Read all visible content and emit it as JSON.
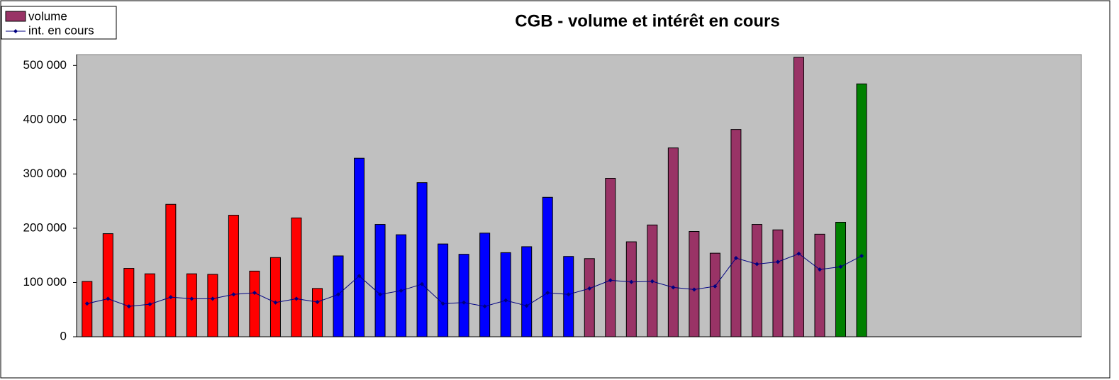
{
  "chart_data": {
    "type": "bar_line",
    "title": "CGB - volume et intérêt en cours",
    "categories": [
      null,
      null,
      null,
      null,
      null,
      null,
      null,
      null,
      null,
      null,
      null,
      null,
      null,
      null,
      null,
      null,
      null,
      null,
      null,
      null,
      null,
      null,
      null,
      null,
      null,
      null,
      null,
      null,
      null,
      null,
      null,
      null,
      null,
      null,
      null,
      null,
      null,
      null,
      null,
      null,
      null,
      null,
      null,
      null,
      null,
      null,
      null,
      null
    ],
    "series": [
      {
        "name": "volume",
        "color": "#993366",
        "values": [
          102000,
          190000,
          126000,
          116000,
          244000,
          116000,
          115000,
          224000,
          121000,
          146000,
          219000,
          89000,
          149000,
          329000,
          207000,
          188000,
          284000,
          171000,
          152000,
          191000,
          155000,
          166000,
          257000,
          148000,
          144000,
          292000,
          175000,
          206000,
          348000,
          194000,
          154000,
          382000,
          207000,
          197000,
          515000,
          189000,
          211000,
          466000,
          null,
          null,
          null,
          null,
          null,
          null,
          null,
          null,
          null,
          null
        ],
        "colors": [
          "#ff0000",
          "#ff0000",
          "#ff0000",
          "#ff0000",
          "#ff0000",
          "#ff0000",
          "#ff0000",
          "#ff0000",
          "#ff0000",
          "#ff0000",
          "#ff0000",
          "#ff0000",
          "#0000ff",
          "#0000ff",
          "#0000ff",
          "#0000ff",
          "#0000ff",
          "#0000ff",
          "#0000ff",
          "#0000ff",
          "#0000ff",
          "#0000ff",
          "#0000ff",
          "#0000ff",
          "#993366",
          "#993366",
          "#993366",
          "#993366",
          "#993366",
          "#993366",
          "#993366",
          "#993366",
          "#993366",
          "#993366",
          "#993366",
          "#993366",
          "#008000",
          "#008000",
          null,
          null,
          null,
          null,
          null,
          null,
          null,
          null,
          null,
          null
        ]
      },
      {
        "name": "int. en cours",
        "color": "#000080",
        "values": [
          61000,
          70000,
          56000,
          60000,
          73000,
          70000,
          70000,
          78000,
          81000,
          63000,
          70000,
          64000,
          78000,
          112000,
          78000,
          85000,
          97000,
          61000,
          63000,
          56000,
          67000,
          57000,
          81000,
          78000,
          89000,
          104000,
          101000,
          102000,
          91000,
          87000,
          93000,
          145000,
          134000,
          138000,
          153000,
          124000,
          129000,
          149000,
          null,
          null,
          null,
          null,
          null,
          null,
          null,
          null,
          null,
          null
        ]
      }
    ],
    "ylim": [
      0,
      520000
    ],
    "yticks": [
      0,
      {
        "value": 100000,
        "label": "100 000"
      },
      {
        "value": 200000,
        "label": "200 000"
      },
      {
        "value": 300000,
        "label": "300 000"
      },
      {
        "value": 400000,
        "label": "400 000"
      },
      {
        "value": 500000,
        "label": "500 000"
      }
    ],
    "grid": false,
    "plot_background": "#c0c0c0",
    "legend": "top-left"
  }
}
